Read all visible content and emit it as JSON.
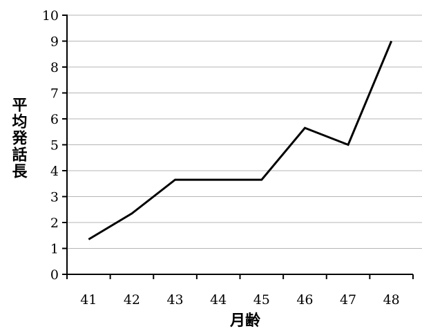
{
  "chart_data": {
    "type": "line",
    "title": "",
    "xlabel": "月齢",
    "ylabel": "平均発話長",
    "categories": [
      "41",
      "42",
      "43",
      "44",
      "45",
      "46",
      "47",
      "48"
    ],
    "series": [
      {
        "values": [
          1.35,
          2.35,
          3.65,
          3.65,
          3.65,
          5.65,
          5.0,
          9.0
        ]
      }
    ],
    "ylim": [
      0,
      10
    ],
    "yticks": [
      "0",
      "1",
      "2",
      "3",
      "4",
      "5",
      "6",
      "7",
      "8",
      "9",
      "10"
    ],
    "grid": true,
    "legend": "none",
    "line_color": "#000000",
    "grid_color": "#b5b5b5"
  }
}
